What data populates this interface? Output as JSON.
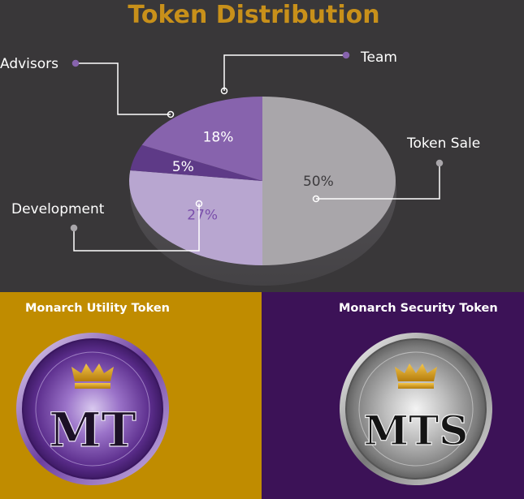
{
  "chart_data": {
    "type": "pie",
    "title": "Token Distribution",
    "slices": [
      {
        "label": "Token Sale",
        "value": 50,
        "value_label": "50%",
        "color": "#a9a6aa"
      },
      {
        "label": "Development",
        "value": 27,
        "value_label": "27%",
        "color": "#b8a6d0"
      },
      {
        "label": "Advisors",
        "value": 5,
        "value_label": "5%",
        "color": "#5e3a87"
      },
      {
        "label": "Team",
        "value": 18,
        "value_label": "18%",
        "color": "#8763ad"
      }
    ],
    "style": "3d"
  },
  "colors": {
    "title": "#c8901a",
    "background": "#393739",
    "utility_panel": "#c08c00",
    "security_panel": "#3c1257"
  },
  "tokens": {
    "utility": {
      "title": "Monarch Utility Token",
      "coin_letters": "MT",
      "coin_icon": "crown-icon"
    },
    "security": {
      "title": "Monarch Security Token",
      "coin_letters": "MTS",
      "coin_icon": "crown-icon"
    }
  }
}
